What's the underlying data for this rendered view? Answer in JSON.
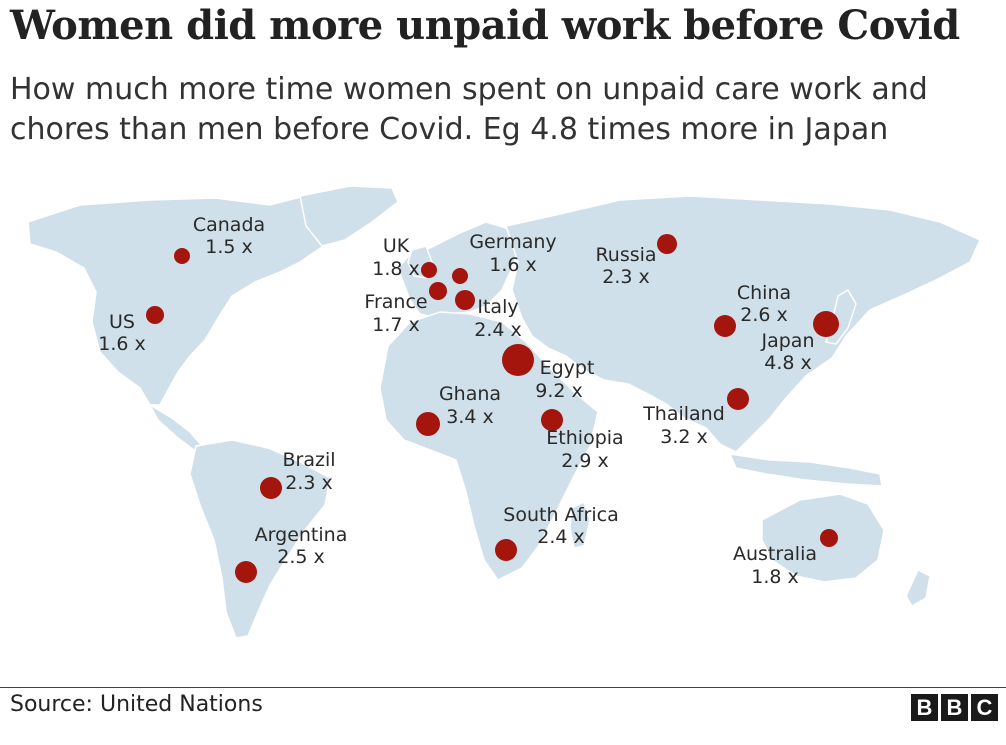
{
  "title": "Women did more unpaid work before Covid",
  "subtitle": "How much more time women spent on unpaid care work and chores than men before Covid. Eg 4.8 times more in Japan",
  "source": "Source: United Nations",
  "logo": [
    "B",
    "B",
    "C"
  ],
  "colors": {
    "land": "#cfe0ea",
    "marker": "#a4150e"
  },
  "countries": [
    {
      "name": "Canada",
      "value": "1.5 x",
      "ratio": 1.5
    },
    {
      "name": "US",
      "value": "1.6 x",
      "ratio": 1.6
    },
    {
      "name": "UK",
      "value": "1.8 x",
      "ratio": 1.8
    },
    {
      "name": "France",
      "value": "1.7 x",
      "ratio": 1.7
    },
    {
      "name": "Germany",
      "value": "1.6 x",
      "ratio": 1.6
    },
    {
      "name": "Italy",
      "value": "2.4 x",
      "ratio": 2.4
    },
    {
      "name": "Russia",
      "value": "2.3 x",
      "ratio": 2.3
    },
    {
      "name": "China",
      "value": "2.6 x",
      "ratio": 2.6
    },
    {
      "name": "Japan",
      "value": "4.8 x",
      "ratio": 4.8
    },
    {
      "name": "Egypt",
      "value": "9.2 x",
      "ratio": 9.2
    },
    {
      "name": "Ghana",
      "value": "3.4 x",
      "ratio": 3.4
    },
    {
      "name": "Ethiopia",
      "value": "2.9 x",
      "ratio": 2.9
    },
    {
      "name": "Thailand",
      "value": "3.2 x",
      "ratio": 3.2
    },
    {
      "name": "Brazil",
      "value": "2.3 x",
      "ratio": 2.3
    },
    {
      "name": "Argentina",
      "value": "2.5 x",
      "ratio": 2.5
    },
    {
      "name": "South Africa",
      "value": "2.4 x",
      "ratio": 2.4
    },
    {
      "name": "Australia",
      "value": "1.8 x",
      "ratio": 1.8
    }
  ]
}
